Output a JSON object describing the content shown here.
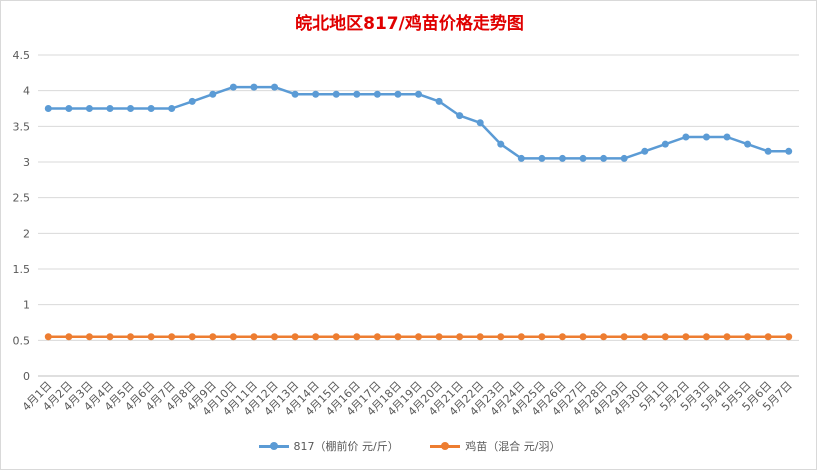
{
  "chart_data": {
    "type": "line",
    "title": "皖北地区817/鸡苗价格走势图",
    "xlabel": "",
    "ylabel": "",
    "ylim": [
      0,
      4.5
    ],
    "yticks": [
      "0",
      "0.5",
      "1",
      "1.5",
      "2",
      "2.5",
      "3",
      "3.5",
      "4",
      "4.5"
    ],
    "grid": true,
    "legend_position": "bottom",
    "categories": [
      "4月1日",
      "4月2日",
      "4月3日",
      "4月4日",
      "4月5日",
      "4月6日",
      "4月7日",
      "4月8日",
      "4月9日",
      "4月10日",
      "4月11日",
      "4月12日",
      "4月13日",
      "4月14日",
      "4月15日",
      "4月16日",
      "4月17日",
      "4月18日",
      "4月19日",
      "4月20日",
      "4月21日",
      "4月22日",
      "4月23日",
      "4月24日",
      "4月25日",
      "4月26日",
      "4月27日",
      "4月28日",
      "4月29日",
      "4月30日",
      "5月1日",
      "5月2日",
      "5月3日",
      "5月4日",
      "5月5日",
      "5月6日",
      "5月7日"
    ],
    "series": [
      {
        "name": "817（棚前价 元/斤）",
        "color": "#5b9bd5",
        "values": [
          3.75,
          3.75,
          3.75,
          3.75,
          3.75,
          3.75,
          3.75,
          3.85,
          3.95,
          4.05,
          4.05,
          4.05,
          3.95,
          3.95,
          3.95,
          3.95,
          3.95,
          3.95,
          3.95,
          3.85,
          3.65,
          3.55,
          3.25,
          3.05,
          3.05,
          3.05,
          3.05,
          3.05,
          3.05,
          3.15,
          3.25,
          3.35,
          3.35,
          3.35,
          3.25,
          3.15,
          3.15
        ]
      },
      {
        "name": "鸡苗（混合 元/羽）",
        "color": "#ed7d31",
        "values": [
          0.55,
          0.55,
          0.55,
          0.55,
          0.55,
          0.55,
          0.55,
          0.55,
          0.55,
          0.55,
          0.55,
          0.55,
          0.55,
          0.55,
          0.55,
          0.55,
          0.55,
          0.55,
          0.55,
          0.55,
          0.55,
          0.55,
          0.55,
          0.55,
          0.55,
          0.55,
          0.55,
          0.55,
          0.55,
          0.55,
          0.55,
          0.55,
          0.55,
          0.55,
          0.55,
          0.55,
          0.55
        ]
      }
    ]
  }
}
